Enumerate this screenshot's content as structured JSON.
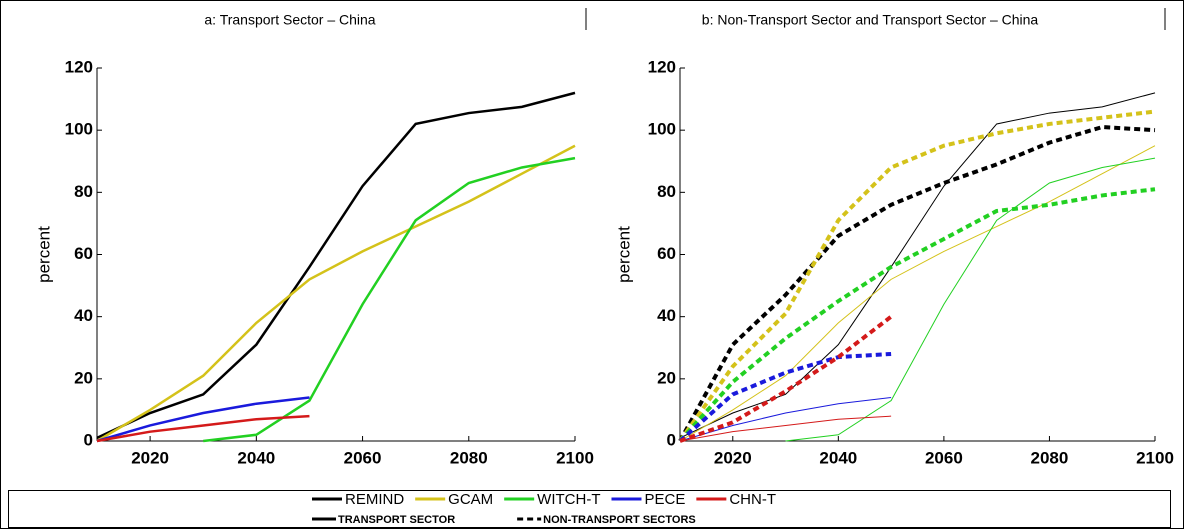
{
  "chart_data": [
    {
      "type": "line",
      "title": "a: Transport Sector – China",
      "y_label": "percent",
      "x": [
        2010,
        2020,
        2030,
        2040,
        2050,
        2060,
        2070,
        2080,
        2090,
        2100
      ],
      "xlim": [
        2010,
        2100
      ],
      "xticks": [
        2020,
        2040,
        2060,
        2080,
        2100
      ],
      "ylim": [
        0,
        120
      ],
      "yticks": [
        0,
        20,
        40,
        60,
        80,
        100,
        120
      ],
      "series": [
        {
          "name": "REMIND",
          "color": "#000000",
          "dashed": false,
          "values": [
            1,
            9,
            15,
            31,
            56,
            82,
            102,
            105.5,
            107.5,
            112
          ]
        },
        {
          "name": "GCAM",
          "color": "#d4c21a",
          "dashed": false,
          "values": [
            0,
            10,
            21,
            38,
            52,
            61,
            69,
            77,
            86,
            95
          ]
        },
        {
          "name": "WITCH-T",
          "color": "#22d022",
          "dashed": false,
          "values": [
            null,
            null,
            0,
            2,
            13,
            44,
            71,
            83,
            88,
            91
          ]
        },
        {
          "name": "PECE",
          "color": "#1a1adc",
          "dashed": false,
          "values": [
            0,
            5,
            9,
            12,
            14,
            null,
            null,
            null,
            null,
            null
          ]
        },
        {
          "name": "CHN-T",
          "color": "#d41a1a",
          "dashed": false,
          "values": [
            0,
            3,
            5,
            7,
            8,
            null,
            null,
            null,
            null,
            null
          ]
        }
      ]
    },
    {
      "type": "line",
      "title": "b: Non-Transport Sector and Transport Sector – China",
      "y_label": "percent",
      "x": [
        2010,
        2020,
        2030,
        2040,
        2050,
        2060,
        2070,
        2080,
        2090,
        2100
      ],
      "xlim": [
        2010,
        2100
      ],
      "xticks": [
        2020,
        2040,
        2060,
        2080,
        2100
      ],
      "ylim": [
        0,
        120
      ],
      "yticks": [
        0,
        20,
        40,
        60,
        80,
        100,
        120
      ],
      "series": [
        {
          "name": "REMIND",
          "color": "#000000",
          "dashed": false,
          "values": [
            1,
            9,
            15,
            31,
            56,
            82,
            102,
            105.5,
            107.5,
            112
          ]
        },
        {
          "name": "GCAM",
          "color": "#d4c21a",
          "dashed": false,
          "values": [
            0,
            10,
            21,
            38,
            52,
            61,
            69,
            77,
            86,
            95
          ]
        },
        {
          "name": "WITCH-T",
          "color": "#22d022",
          "dashed": false,
          "values": [
            null,
            null,
            0,
            2,
            13,
            44,
            71,
            83,
            88,
            91
          ]
        },
        {
          "name": "PECE",
          "color": "#1a1adc",
          "dashed": false,
          "values": [
            0,
            5,
            9,
            12,
            14,
            null,
            null,
            null,
            null,
            null
          ]
        },
        {
          "name": "CHN-T",
          "color": "#d41a1a",
          "dashed": false,
          "values": [
            0,
            3,
            5,
            7,
            8,
            null,
            null,
            null,
            null,
            null
          ]
        },
        {
          "name": "REMIND",
          "color": "#000000",
          "dashed": true,
          "values": [
            0,
            31,
            47,
            66,
            76,
            83,
            89,
            96,
            101,
            100
          ]
        },
        {
          "name": "GCAM",
          "color": "#d4c21a",
          "dashed": true,
          "values": [
            0,
            24,
            41,
            71,
            88,
            95,
            99,
            102,
            104,
            106
          ]
        },
        {
          "name": "WITCH-T",
          "color": "#22d022",
          "dashed": true,
          "values": [
            0,
            19,
            33,
            45,
            56,
            65,
            74,
            76,
            79,
            81
          ]
        },
        {
          "name": "PECE",
          "color": "#1a1adc",
          "dashed": true,
          "values": [
            0,
            15,
            22,
            27,
            28,
            null,
            null,
            null,
            null,
            null
          ]
        },
        {
          "name": "CHN-T",
          "color": "#d41a1a",
          "dashed": true,
          "values": [
            0,
            6,
            16,
            27,
            40,
            null,
            null,
            null,
            null,
            null
          ]
        }
      ]
    }
  ],
  "line_styles": [
    {
      "label": "TRANSPORT SECTOR",
      "dashed": false
    },
    {
      "label": "NON-TRANSPORT SECTORS",
      "dashed": true
    }
  ]
}
